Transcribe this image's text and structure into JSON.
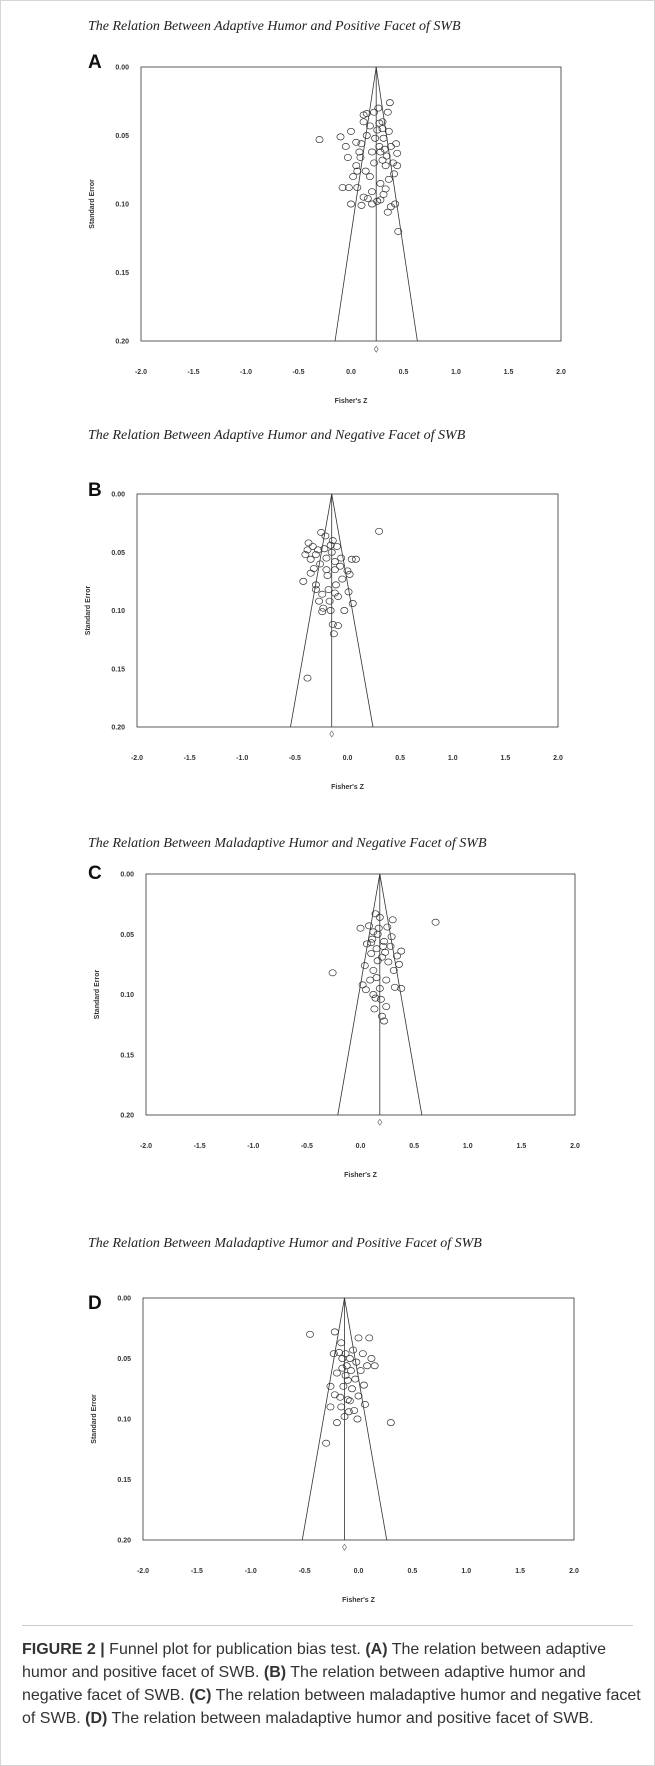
{
  "figure": {
    "caption": {
      "label": "FIGURE 2 |",
      "lead": "Funnel plot for publication bias test.",
      "parts": [
        {
          "key": "(A)",
          "text": "The relation between adaptive humor and positive facet of SWB."
        },
        {
          "key": "(B)",
          "text": "The relation between adaptive humor and negative facet of SWB."
        },
        {
          "key": "(C)",
          "text": "The relation between maladaptive humor and negative facet of SWB."
        },
        {
          "key": "(D)",
          "text": "The relation between maladaptive humor and positive facet of SWB."
        }
      ]
    }
  },
  "chart_data": [
    {
      "type": "scatter",
      "panel_label": "A",
      "title": "The Relation Between Adaptive Humor and Positive Facet of SWB",
      "xlabel": "Fisher's Z",
      "ylabel": "Standard Error",
      "xlim": [
        -2.0,
        2.0
      ],
      "ylim": [
        0.0,
        0.2
      ],
      "y_reversed": true,
      "x_ticks": [
        "-2.0",
        "-1.5",
        "-1.0",
        "-0.5",
        "0.0",
        "0.5",
        "1.0",
        "1.5",
        "2.0"
      ],
      "y_ticks": [
        "0.00",
        "0.05",
        "0.10",
        "0.15",
        "0.20"
      ],
      "pooled_estimate": 0.24,
      "funnel_se_max": 0.2,
      "diamond": {
        "x": 0.24,
        "y": 0.206
      },
      "grid": false,
      "points": [
        [
          -0.3,
          0.053
        ],
        [
          -0.1,
          0.051
        ],
        [
          -0.05,
          0.058
        ],
        [
          -0.03,
          0.066
        ],
        [
          -0.08,
          0.088
        ],
        [
          0.05,
          0.072
        ],
        [
          0.06,
          0.088
        ],
        [
          0.08,
          0.062
        ],
        [
          0.1,
          0.056
        ],
        [
          0.12,
          0.04
        ],
        [
          0.12,
          0.035
        ],
        [
          0.15,
          0.034
        ],
        [
          0.15,
          0.05
        ],
        [
          0.14,
          0.076
        ],
        [
          0.18,
          0.08
        ],
        [
          0.2,
          0.062
        ],
        [
          0.2,
          0.091
        ],
        [
          0.22,
          0.07
        ],
        [
          0.22,
          0.033
        ],
        [
          0.23,
          0.052
        ],
        [
          0.25,
          0.046
        ],
        [
          0.26,
          0.03
        ],
        [
          0.27,
          0.058
        ],
        [
          0.28,
          0.062
        ],
        [
          0.28,
          0.085
        ],
        [
          0.3,
          0.068
        ],
        [
          0.3,
          0.045
        ],
        [
          0.3,
          0.04
        ],
        [
          0.31,
          0.052
        ],
        [
          0.32,
          0.06
        ],
        [
          0.33,
          0.072
        ],
        [
          0.34,
          0.065
        ],
        [
          0.35,
          0.033
        ],
        [
          0.36,
          0.047
        ],
        [
          0.36,
          0.082
        ],
        [
          0.37,
          0.026
        ],
        [
          0.38,
          0.058
        ],
        [
          0.4,
          0.07
        ],
        [
          0.41,
          0.078
        ],
        [
          0.43,
          0.056
        ],
        [
          0.44,
          0.063
        ],
        [
          0.44,
          0.072
        ],
        [
          0.42,
          0.1
        ],
        [
          0.45,
          0.12
        ],
        [
          0.35,
          0.106
        ],
        [
          0.38,
          0.102
        ],
        [
          0.28,
          0.097
        ],
        [
          0.25,
          0.098
        ],
        [
          0.2,
          0.1
        ],
        [
          0.16,
          0.096
        ],
        [
          0.12,
          0.095
        ],
        [
          0.1,
          0.101
        ],
        [
          0.0,
          0.1
        ],
        [
          -0.02,
          0.088
        ],
        [
          0.02,
          0.08
        ],
        [
          0.06,
          0.076
        ],
        [
          0.09,
          0.066
        ],
        [
          0.05,
          0.055
        ],
        [
          0.0,
          0.047
        ],
        [
          0.18,
          0.043
        ],
        [
          0.27,
          0.041
        ],
        [
          0.33,
          0.089
        ],
        [
          0.31,
          0.093
        ]
      ]
    },
    {
      "type": "scatter",
      "panel_label": "B",
      "title": "The Relation Between Adaptive Humor and Negative Facet of SWB",
      "xlabel": "Fisher's Z",
      "ylabel": "Standard Error",
      "xlim": [
        -2.0,
        2.0
      ],
      "ylim": [
        0.0,
        0.2
      ],
      "y_reversed": true,
      "x_ticks": [
        "-2.0",
        "-1.5",
        "-1.0",
        "-0.5",
        "0.0",
        "0.5",
        "1.0",
        "1.5",
        "2.0"
      ],
      "y_ticks": [
        "0.00",
        "0.05",
        "0.10",
        "0.15",
        "0.20"
      ],
      "pooled_estimate": -0.15,
      "funnel_se_max": 0.2,
      "diamond": {
        "x": -0.15,
        "y": 0.206
      },
      "grid": false,
      "points": [
        [
          -0.38,
          0.158
        ],
        [
          -0.42,
          0.075
        ],
        [
          -0.4,
          0.052
        ],
        [
          -0.38,
          0.048
        ],
        [
          -0.37,
          0.042
        ],
        [
          -0.35,
          0.056
        ],
        [
          -0.33,
          0.045
        ],
        [
          -0.32,
          0.064
        ],
        [
          -0.3,
          0.052
        ],
        [
          -0.3,
          0.078
        ],
        [
          -0.28,
          0.048
        ],
        [
          -0.26,
          0.06
        ],
        [
          -0.25,
          0.033
        ],
        [
          -0.24,
          0.086
        ],
        [
          -0.23,
          0.098
        ],
        [
          -0.22,
          0.047
        ],
        [
          -0.21,
          0.036
        ],
        [
          -0.2,
          0.055
        ],
        [
          -0.2,
          0.065
        ],
        [
          -0.19,
          0.07
        ],
        [
          -0.18,
          0.082
        ],
        [
          -0.17,
          0.092
        ],
        [
          -0.16,
          0.1
        ],
        [
          -0.16,
          0.044
        ],
        [
          -0.15,
          0.05
        ],
        [
          -0.14,
          0.04
        ],
        [
          -0.14,
          0.112
        ],
        [
          -0.13,
          0.12
        ],
        [
          -0.12,
          0.058
        ],
        [
          -0.12,
          0.065
        ],
        [
          -0.11,
          0.078
        ],
        [
          -0.1,
          0.045
        ],
        [
          -0.09,
          0.088
        ],
        [
          -0.09,
          0.113
        ],
        [
          -0.07,
          0.062
        ],
        [
          -0.05,
          0.073
        ],
        [
          -0.03,
          0.1
        ],
        [
          0.0,
          0.066
        ],
        [
          0.01,
          0.084
        ],
        [
          0.02,
          0.069
        ],
        [
          0.04,
          0.056
        ],
        [
          0.05,
          0.094
        ],
        [
          0.08,
          0.056
        ],
        [
          0.3,
          0.032
        ],
        [
          -0.27,
          0.092
        ],
        [
          -0.24,
          0.101
        ],
        [
          -0.3,
          0.082
        ],
        [
          -0.06,
          0.055
        ],
        [
          -0.12,
          0.085
        ],
        [
          -0.35,
          0.068
        ]
      ]
    },
    {
      "type": "scatter",
      "panel_label": "C",
      "title": "The Relation Between Maladaptive Humor and Negative Facet of SWB",
      "xlabel": "Fisher's Z",
      "ylabel": "Standard Error",
      "xlim": [
        -2.0,
        2.0
      ],
      "ylim": [
        0.0,
        0.2
      ],
      "y_reversed": true,
      "x_ticks": [
        "-2.0",
        "-1.5",
        "-1.0",
        "-0.5",
        "0.0",
        "0.5",
        "1.0",
        "1.5",
        "2.0"
      ],
      "y_ticks": [
        "0.00",
        "0.05",
        "0.10",
        "0.15",
        "0.20"
      ],
      "pooled_estimate": 0.18,
      "funnel_se_max": 0.2,
      "diamond": {
        "x": 0.18,
        "y": 0.206
      },
      "grid": false,
      "points": [
        [
          -0.26,
          0.082
        ],
        [
          0.0,
          0.045
        ],
        [
          0.02,
          0.092
        ],
        [
          0.04,
          0.076
        ],
        [
          0.06,
          0.058
        ],
        [
          0.08,
          0.043
        ],
        [
          0.09,
          0.088
        ],
        [
          0.1,
          0.066
        ],
        [
          0.11,
          0.054
        ],
        [
          0.12,
          0.048
        ],
        [
          0.12,
          0.08
        ],
        [
          0.12,
          0.1
        ],
        [
          0.13,
          0.112
        ],
        [
          0.14,
          0.033
        ],
        [
          0.15,
          0.086
        ],
        [
          0.15,
          0.062
        ],
        [
          0.16,
          0.05
        ],
        [
          0.16,
          0.072
        ],
        [
          0.17,
          0.045
        ],
        [
          0.18,
          0.036
        ],
        [
          0.18,
          0.095
        ],
        [
          0.19,
          0.104
        ],
        [
          0.2,
          0.069
        ],
        [
          0.2,
          0.118
        ],
        [
          0.21,
          0.06
        ],
        [
          0.22,
          0.056
        ],
        [
          0.22,
          0.122
        ],
        [
          0.23,
          0.065
        ],
        [
          0.24,
          0.088
        ],
        [
          0.25,
          0.044
        ],
        [
          0.26,
          0.073
        ],
        [
          0.28,
          0.06
        ],
        [
          0.29,
          0.052
        ],
        [
          0.3,
          0.038
        ],
        [
          0.31,
          0.08
        ],
        [
          0.32,
          0.094
        ],
        [
          0.34,
          0.068
        ],
        [
          0.36,
          0.075
        ],
        [
          0.38,
          0.064
        ],
        [
          0.38,
          0.095
        ],
        [
          0.7,
          0.04
        ],
        [
          0.14,
          0.103
        ],
        [
          0.05,
          0.096
        ],
        [
          0.24,
          0.11
        ],
        [
          0.1,
          0.057
        ]
      ]
    },
    {
      "type": "scatter",
      "panel_label": "D",
      "title": "The Relation Between Maladaptive Humor and Positive Facet of SWB",
      "xlabel": "Fisher's Z",
      "ylabel": "Standard Error",
      "xlim": [
        -2.0,
        2.0
      ],
      "ylim": [
        0.0,
        0.2
      ],
      "y_reversed": true,
      "x_ticks": [
        "-2.0",
        "-1.5",
        "-1.0",
        "-0.5",
        "0.0",
        "0.5",
        "1.0",
        "1.5",
        "2.0"
      ],
      "y_ticks": [
        "0.00",
        "0.05",
        "0.10",
        "0.15",
        "0.20"
      ],
      "pooled_estimate": -0.13,
      "funnel_se_max": 0.2,
      "diamond": {
        "x": -0.13,
        "y": 0.206
      },
      "grid": false,
      "points": [
        [
          -0.45,
          0.03
        ],
        [
          -0.3,
          0.12
        ],
        [
          -0.26,
          0.073
        ],
        [
          -0.23,
          0.046
        ],
        [
          -0.22,
          0.08
        ],
        [
          -0.2,
          0.062
        ],
        [
          -0.2,
          0.103
        ],
        [
          -0.18,
          0.045
        ],
        [
          -0.17,
          0.082
        ],
        [
          -0.16,
          0.09
        ],
        [
          -0.15,
          0.05
        ],
        [
          -0.15,
          0.058
        ],
        [
          -0.14,
          0.073
        ],
        [
          -0.13,
          0.098
        ],
        [
          -0.12,
          0.046
        ],
        [
          -0.12,
          0.064
        ],
        [
          -0.11,
          0.056
        ],
        [
          -0.1,
          0.068
        ],
        [
          -0.1,
          0.084
        ],
        [
          -0.09,
          0.094
        ],
        [
          -0.08,
          0.05
        ],
        [
          -0.07,
          0.06
        ],
        [
          -0.06,
          0.075
        ],
        [
          -0.05,
          0.043
        ],
        [
          -0.04,
          0.093
        ],
        [
          -0.03,
          0.067
        ],
        [
          -0.02,
          0.053
        ],
        [
          -0.01,
          0.1
        ],
        [
          0.0,
          0.081
        ],
        [
          0.02,
          0.06
        ],
        [
          0.04,
          0.046
        ],
        [
          0.05,
          0.072
        ],
        [
          0.06,
          0.088
        ],
        [
          0.08,
          0.056
        ],
        [
          0.1,
          0.033
        ],
        [
          0.12,
          0.05
        ],
        [
          0.15,
          0.056
        ],
        [
          0.3,
          0.103
        ],
        [
          -0.26,
          0.09
        ],
        [
          -0.22,
          0.028
        ],
        [
          -0.08,
          0.085
        ],
        [
          0.0,
          0.033
        ],
        [
          -0.16,
          0.037
        ]
      ]
    }
  ]
}
